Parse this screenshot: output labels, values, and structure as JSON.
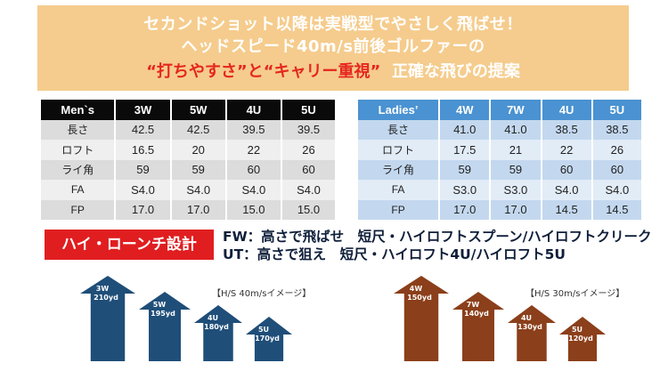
{
  "banner": {
    "line1": "セカンドショット以降は実戦型でやさしく飛ばせ！",
    "line2": "ヘッドスピード40m/s前後ゴルファーの",
    "line3_red": "“打ちやすさ”と“キャリー重視”",
    "line3_rest": "正確な飛びの提案"
  },
  "mens_table": {
    "headers": [
      "Men`s",
      "3W",
      "5W",
      "4U",
      "5U"
    ],
    "rows": [
      [
        "長さ",
        "42.5",
        "42.5",
        "39.5",
        "39.5"
      ],
      [
        "ロフト",
        "16.5",
        "20",
        "22",
        "26"
      ],
      [
        "ライ角",
        "59",
        "59",
        "60",
        "60"
      ],
      [
        "FA",
        "S4.0",
        "S4.0",
        "S4.0",
        "S4.0"
      ],
      [
        "FP",
        "17.0",
        "17.0",
        "15.0",
        "15.0"
      ]
    ]
  },
  "ladies_table": {
    "headers": [
      "Ladies’",
      "4W",
      "7W",
      "4U",
      "5U"
    ],
    "rows": [
      [
        "長さ",
        "41.0",
        "41.0",
        "38.5",
        "38.5"
      ],
      [
        "ロフト",
        "17.5",
        "21",
        "22",
        "26"
      ],
      [
        "ライ角",
        "59",
        "59",
        "60",
        "60"
      ],
      [
        "FA",
        "S3.0",
        "S3.0",
        "S4.0",
        "S4.0"
      ],
      [
        "FP",
        "17.0",
        "17.0",
        "14.5",
        "14.5"
      ]
    ]
  },
  "hilo_label": "ハイ・ローンチ設計",
  "fw_line": "FW：高さで飛ばせ　短尺・ハイロフトスプーン/ハイロフトクリーク",
  "ut_line": "UT：高さで狙え　短尺・ハイロフト4U/ハイロフト5U",
  "mens_note": "【H/S 40m/sイメージ】",
  "ladies_note": "【H/S 30m/sイメージ】",
  "mens_arrows": [
    {
      "club": "3W",
      "distance": "210yd"
    },
    {
      "club": "5W",
      "distance": "195yd"
    },
    {
      "club": "4U",
      "distance": "180yd"
    },
    {
      "club": "5U",
      "distance": "170yd"
    }
  ],
  "ladies_arrows": [
    {
      "club": "4W",
      "distance": "150yd"
    },
    {
      "club": "7W",
      "distance": "140yd"
    },
    {
      "club": "4U",
      "distance": "130yd"
    },
    {
      "club": "5U",
      "distance": "120yd"
    }
  ],
  "colors": {
    "banner_bg": "#f5cc8d",
    "accent_red": "#e5261f",
    "mens_arrow": "#1f4e79",
    "ladies_arrow": "#8b3f1a",
    "ladies_header": "#4a92d1"
  }
}
